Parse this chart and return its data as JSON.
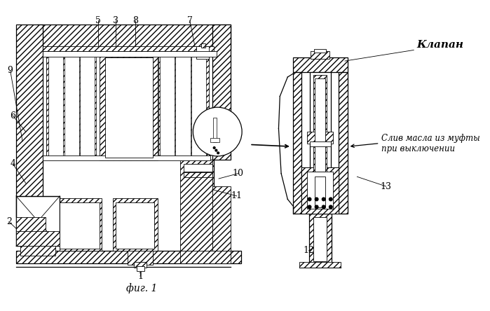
{
  "bg_color": "#ffffff",
  "figsize": [
    6.99,
    4.44
  ],
  "dpi": 100,
  "title_fig": "фиг. 1",
  "label_klapan": "Клапан",
  "label_sliv_line1": "Слив масла из муфты",
  "label_sliv_line2": "при выключении"
}
